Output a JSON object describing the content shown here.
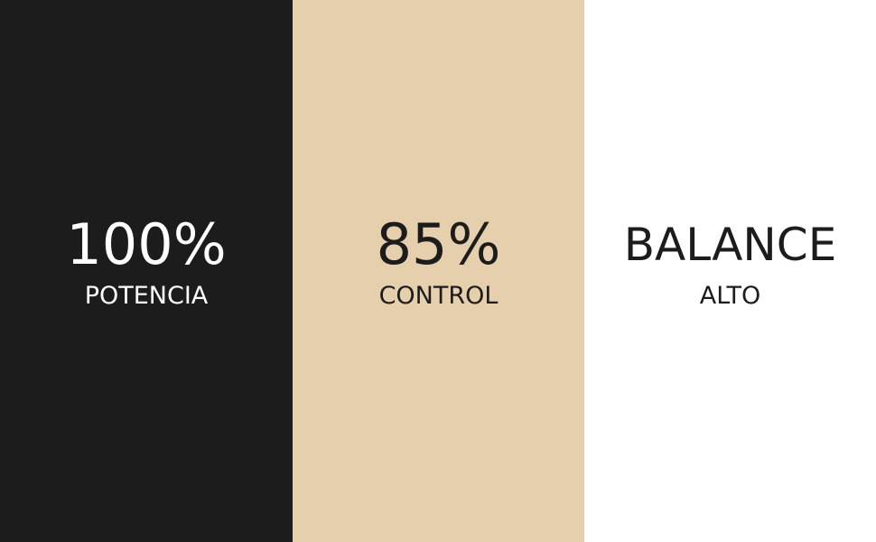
{
  "stats": [
    {
      "value": "100%",
      "label": "POTENCIA",
      "background": "#1c1c1c"
    },
    {
      "value": "85%",
      "label": "CONTROL",
      "background": "#e5cfac"
    },
    {
      "value": "BALANCE",
      "label": "ALTO",
      "background": "#ffffff"
    }
  ]
}
